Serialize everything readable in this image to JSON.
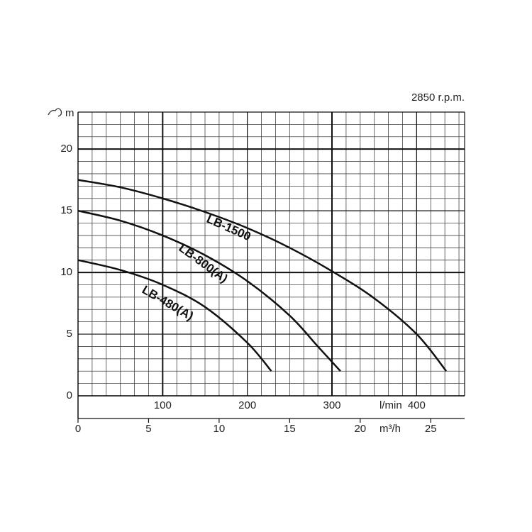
{
  "chart_data": {
    "type": "line",
    "annotation": "2850 r.p.m.",
    "ylabel": "m",
    "xlabel": "m³/h",
    "x2label": "l/min",
    "xlim": [
      0,
      27.4
    ],
    "xticks": [
      0,
      5,
      10,
      15,
      20,
      25
    ],
    "x2lim": [
      0,
      456.7
    ],
    "x2ticks": [
      100,
      200,
      300,
      400
    ],
    "ylim": [
      0,
      23
    ],
    "yticks": [
      0,
      5,
      10,
      15,
      20
    ],
    "grid": true,
    "series": [
      {
        "name": "LB-1500",
        "color": "#111111",
        "x": [
          0,
          3,
          6,
          9,
          12,
          15,
          18,
          21,
          24,
          26.1
        ],
        "values": [
          17.5,
          16.9,
          16.0,
          14.9,
          13.6,
          12.0,
          10.1,
          7.9,
          5.0,
          2
        ]
      },
      {
        "name": "LB-800(A)",
        "color": "#111111",
        "x": [
          0,
          3,
          6,
          9,
          12,
          15,
          17,
          18.6
        ],
        "values": [
          15,
          14.2,
          13.0,
          11.4,
          9.3,
          6.5,
          4.0,
          2
        ]
      },
      {
        "name": "LB-480(A)",
        "color": "#111111",
        "x": [
          0,
          3,
          6,
          9,
          12,
          13.7
        ],
        "values": [
          11,
          10.2,
          9.0,
          7.2,
          4.3,
          2
        ]
      }
    ]
  }
}
